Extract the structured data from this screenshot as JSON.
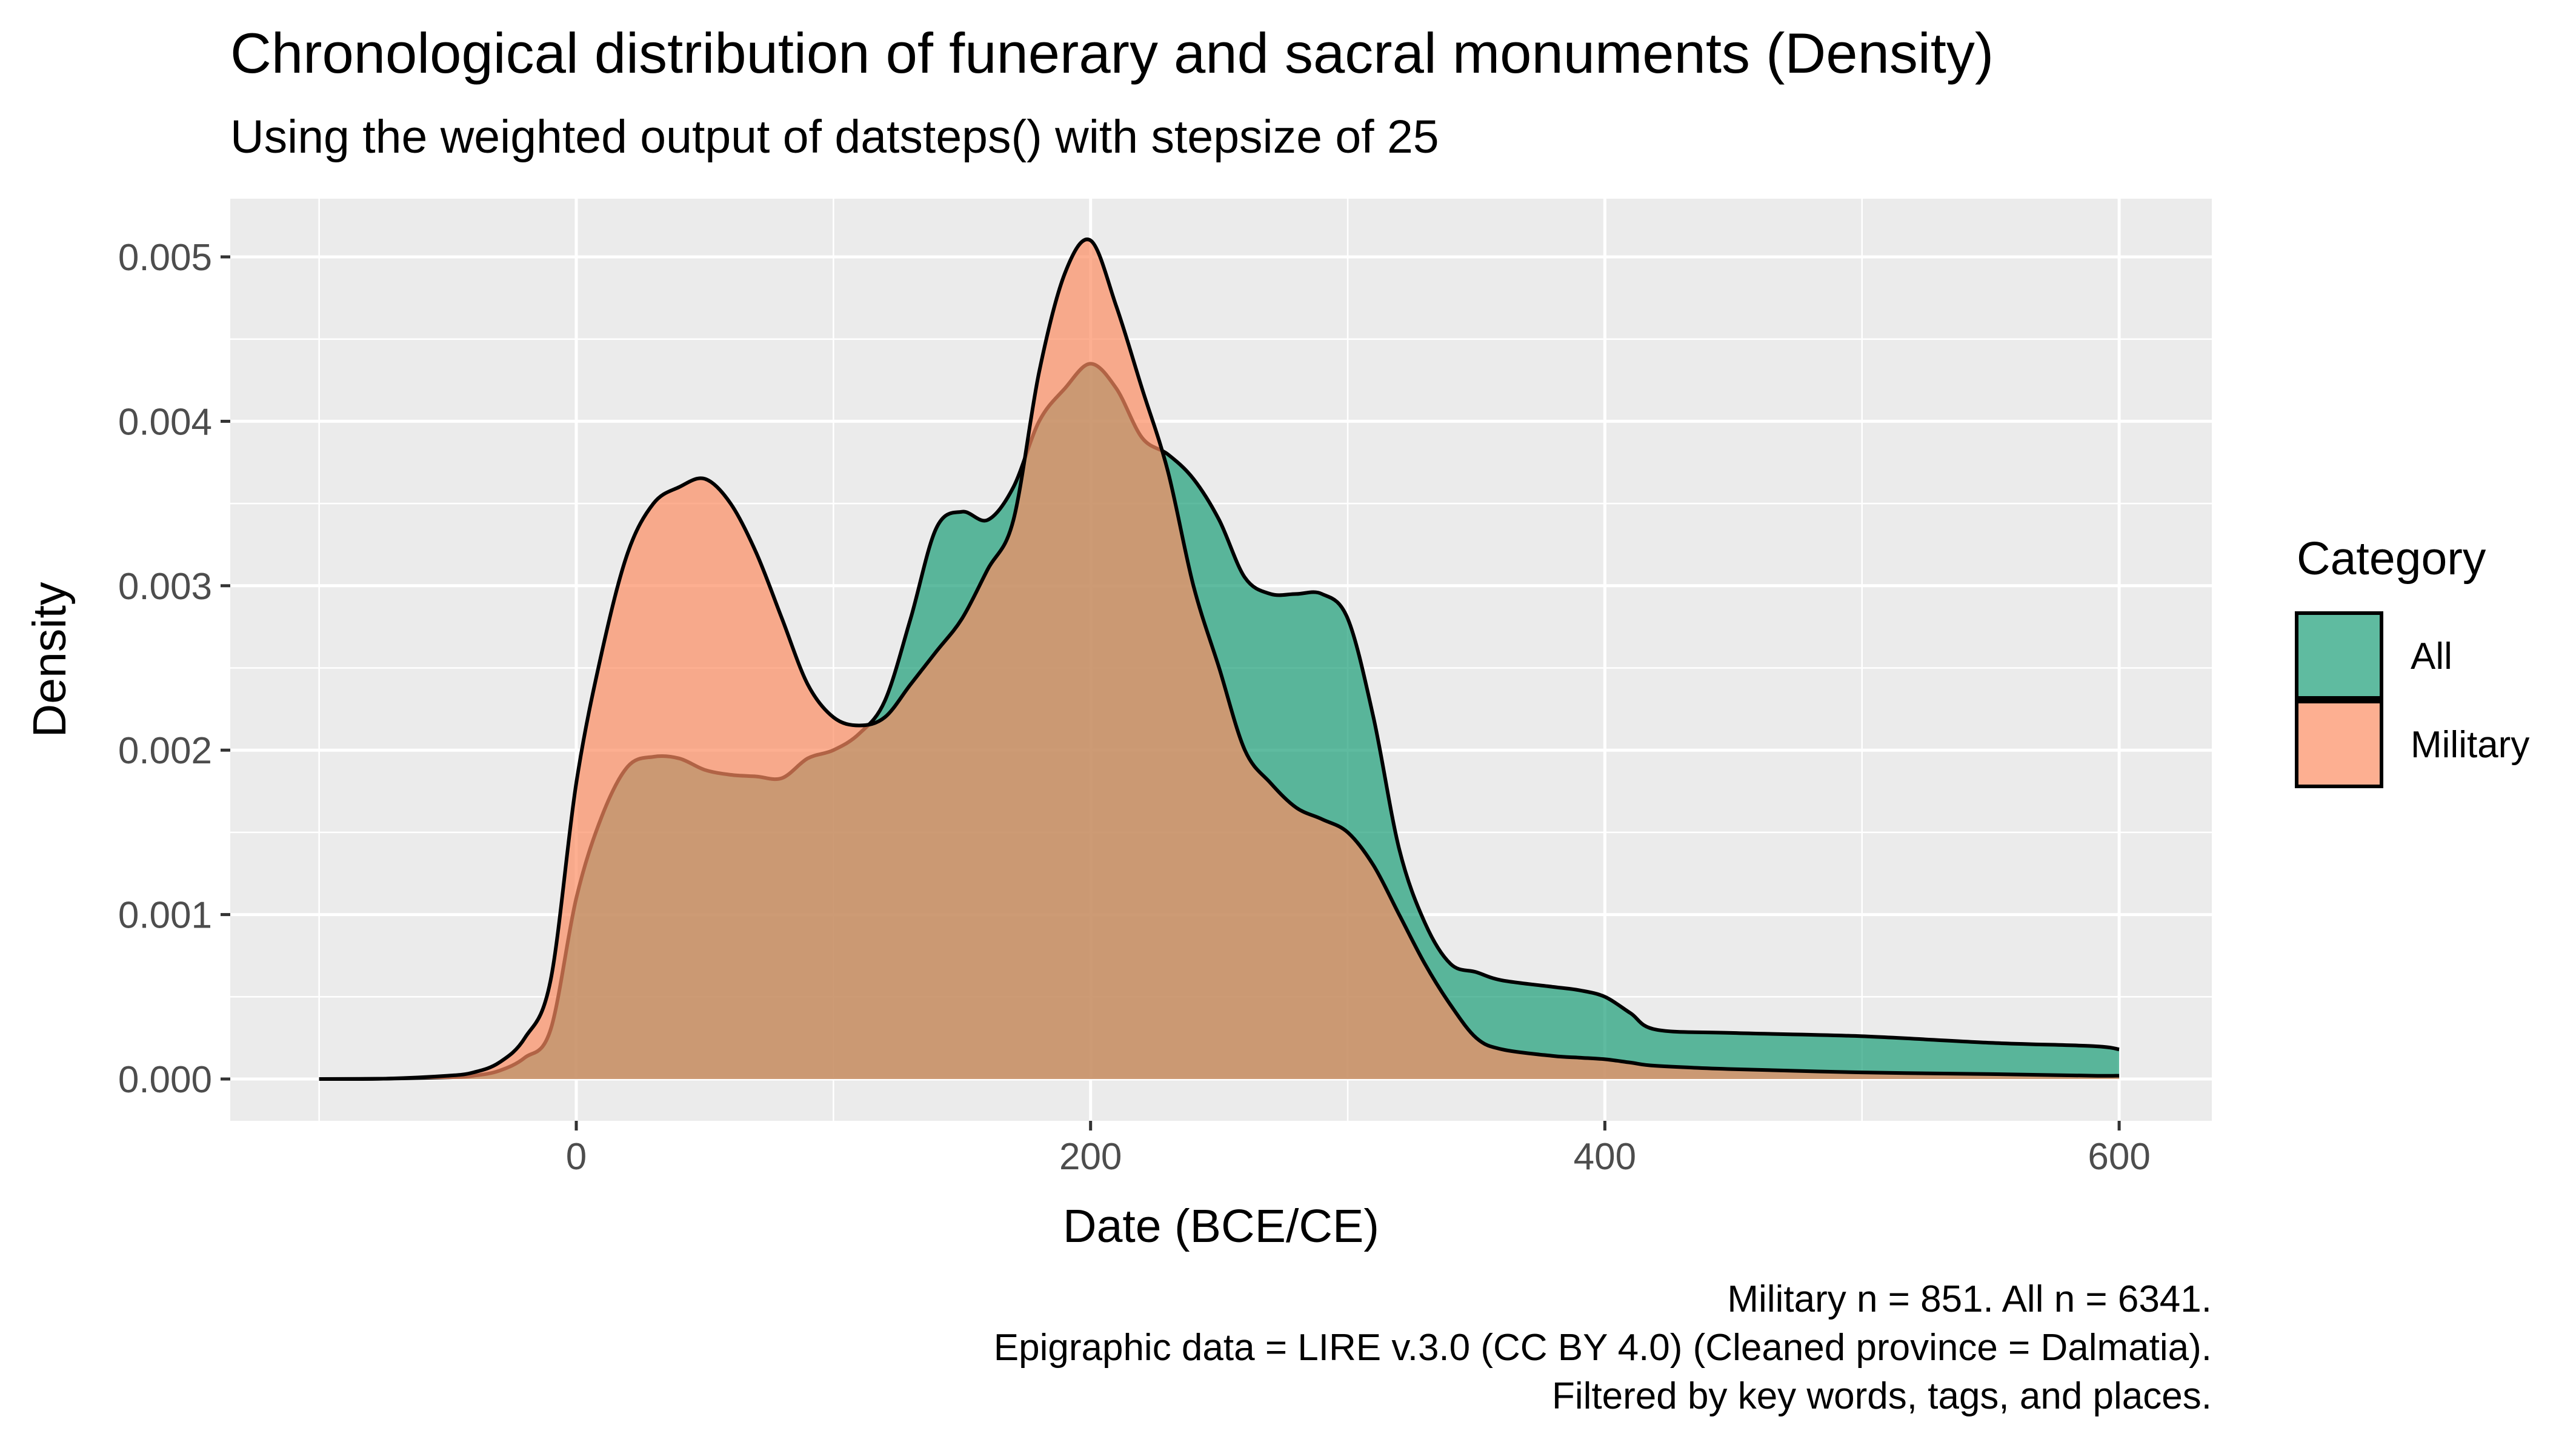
{
  "chart_data": {
    "type": "area",
    "title": "Chronological distribution of funerary and sacral monuments (Density)",
    "subtitle": "Using the weighted output of datsteps() with stepsize of 25",
    "xlabel": "Date (BCE/CE)",
    "ylabel": "Density",
    "xlim": [
      -100,
      600
    ],
    "ylim": [
      0,
      0.005
    ],
    "x_ticks": [
      0,
      200,
      400,
      600
    ],
    "y_ticks": [
      0.0,
      0.001,
      0.002,
      0.003,
      0.004,
      0.005
    ],
    "x_tick_labels": [
      "0",
      "200",
      "400",
      "600"
    ],
    "y_tick_labels": [
      "0.000",
      "0.001",
      "0.002",
      "0.003",
      "0.004",
      "0.005"
    ],
    "grid": true,
    "legend": {
      "title": "Category",
      "position": "right"
    },
    "caption": [
      "Military n = 851. All n = 6341.",
      "Epigraphic data = LIRE v.3.0 (CC BY 4.0) (Cleaned province = Dalmatia).",
      "Filtered by key words, tags, and places."
    ],
    "series": [
      {
        "name": "All",
        "color": "#1b9e77",
        "x": [
          -100,
          -75,
          -50,
          -40,
          -30,
          -20,
          -10,
          0,
          10,
          20,
          30,
          40,
          50,
          60,
          70,
          80,
          90,
          100,
          110,
          120,
          130,
          140,
          150,
          160,
          170,
          180,
          190,
          200,
          210,
          220,
          230,
          240,
          250,
          260,
          270,
          280,
          290,
          300,
          310,
          320,
          330,
          340,
          350,
          360,
          380,
          390,
          400,
          410,
          420,
          450,
          500,
          550,
          590,
          600
        ],
        "y": [
          0,
          2e-06,
          1e-05,
          2e-05,
          5e-05,
          0.00013,
          0.0003,
          0.0011,
          0.0016,
          0.0019,
          0.00196,
          0.00195,
          0.00188,
          0.00185,
          0.00184,
          0.00183,
          0.00195,
          0.002,
          0.0021,
          0.0023,
          0.0028,
          0.00335,
          0.00345,
          0.0034,
          0.0036,
          0.004,
          0.0042,
          0.00435,
          0.0042,
          0.0039,
          0.0038,
          0.00365,
          0.0034,
          0.00305,
          0.00295,
          0.00295,
          0.00295,
          0.0028,
          0.0022,
          0.0014,
          0.00095,
          0.0007,
          0.00065,
          0.0006,
          0.00056,
          0.00054,
          0.0005,
          0.0004,
          0.0003,
          0.00028,
          0.00026,
          0.00022,
          0.0002,
          0.00018
        ]
      },
      {
        "name": "Military",
        "color": "#fc8d62",
        "x": [
          -100,
          -75,
          -50,
          -40,
          -30,
          -20,
          -10,
          0,
          10,
          20,
          30,
          40,
          50,
          60,
          70,
          80,
          90,
          100,
          110,
          120,
          130,
          140,
          150,
          160,
          170,
          180,
          190,
          200,
          210,
          220,
          230,
          240,
          250,
          260,
          270,
          280,
          290,
          300,
          310,
          320,
          330,
          340,
          350,
          360,
          380,
          390,
          400,
          410,
          420,
          450,
          500,
          550,
          590,
          600
        ],
        "y": [
          0,
          2e-06,
          2e-05,
          4e-05,
          0.0001,
          0.00025,
          0.0006,
          0.0018,
          0.0026,
          0.0032,
          0.0035,
          0.0036,
          0.00365,
          0.0035,
          0.0032,
          0.0028,
          0.0024,
          0.0022,
          0.00215,
          0.0022,
          0.0024,
          0.0026,
          0.0028,
          0.0031,
          0.0034,
          0.0043,
          0.0049,
          0.0051,
          0.0047,
          0.0042,
          0.0037,
          0.003,
          0.0025,
          0.002,
          0.0018,
          0.00165,
          0.00158,
          0.0015,
          0.0013,
          0.001,
          0.0007,
          0.00045,
          0.00025,
          0.00018,
          0.00014,
          0.00013,
          0.00012,
          0.0001,
          8e-05,
          6e-05,
          4e-05,
          3e-05,
          2e-05,
          2e-05
        ]
      }
    ]
  }
}
